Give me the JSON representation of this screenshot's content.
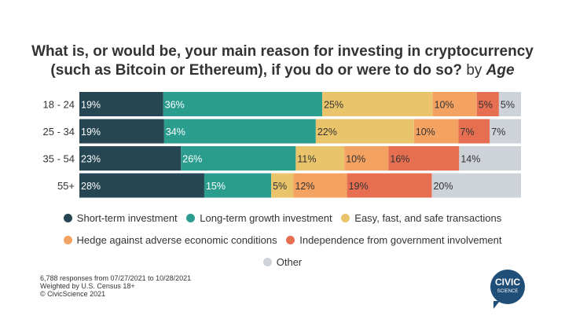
{
  "chart_data": {
    "type": "bar",
    "orientation": "horizontal-stacked-100",
    "title_line1": "What is, or would be, your main reason for investing in cryptocurrency",
    "title_line2": "(such as Bitcoin or Ethereum), if you do or were to do so?",
    "title_by": "by",
    "title_dim": "Age",
    "categories": [
      "18 - 24",
      "25 - 34",
      "35 - 54",
      "55+"
    ],
    "series": [
      {
        "name": "Short-term investment",
        "color": "#264653",
        "label_color": "#ffffff",
        "values": [
          19,
          19,
          23,
          28
        ]
      },
      {
        "name": "Long-term growth investment",
        "color": "#2a9d8f",
        "label_color": "#ffffff",
        "values": [
          36,
          34,
          26,
          15
        ]
      },
      {
        "name": "Easy, fast, and safe transactions",
        "color": "#e9c46a",
        "label_color": "#333333",
        "values": [
          25,
          22,
          11,
          5
        ]
      },
      {
        "name": "Hedge against adverse economic conditions",
        "color": "#f4a261",
        "label_color": "#333333",
        "values": [
          10,
          10,
          10,
          12
        ]
      },
      {
        "name": "Independence from government involvement",
        "color": "#e76f51",
        "label_color": "#333333",
        "values": [
          5,
          7,
          16,
          19
        ]
      },
      {
        "name": "Other",
        "color": "#ced2d9",
        "label_color": "#333333",
        "values": [
          5,
          7,
          14,
          20
        ]
      }
    ],
    "legend_placement": "bottom",
    "grid": false
  },
  "footer": {
    "line1": "6,788 responses from 07/27/2021 to 10/28/2021",
    "line2": "Weighted by U.S. Census 18+",
    "line3": "© CivicScience 2021"
  },
  "logo": {
    "line1": "CIVIC",
    "line2": "SCIENCE"
  }
}
